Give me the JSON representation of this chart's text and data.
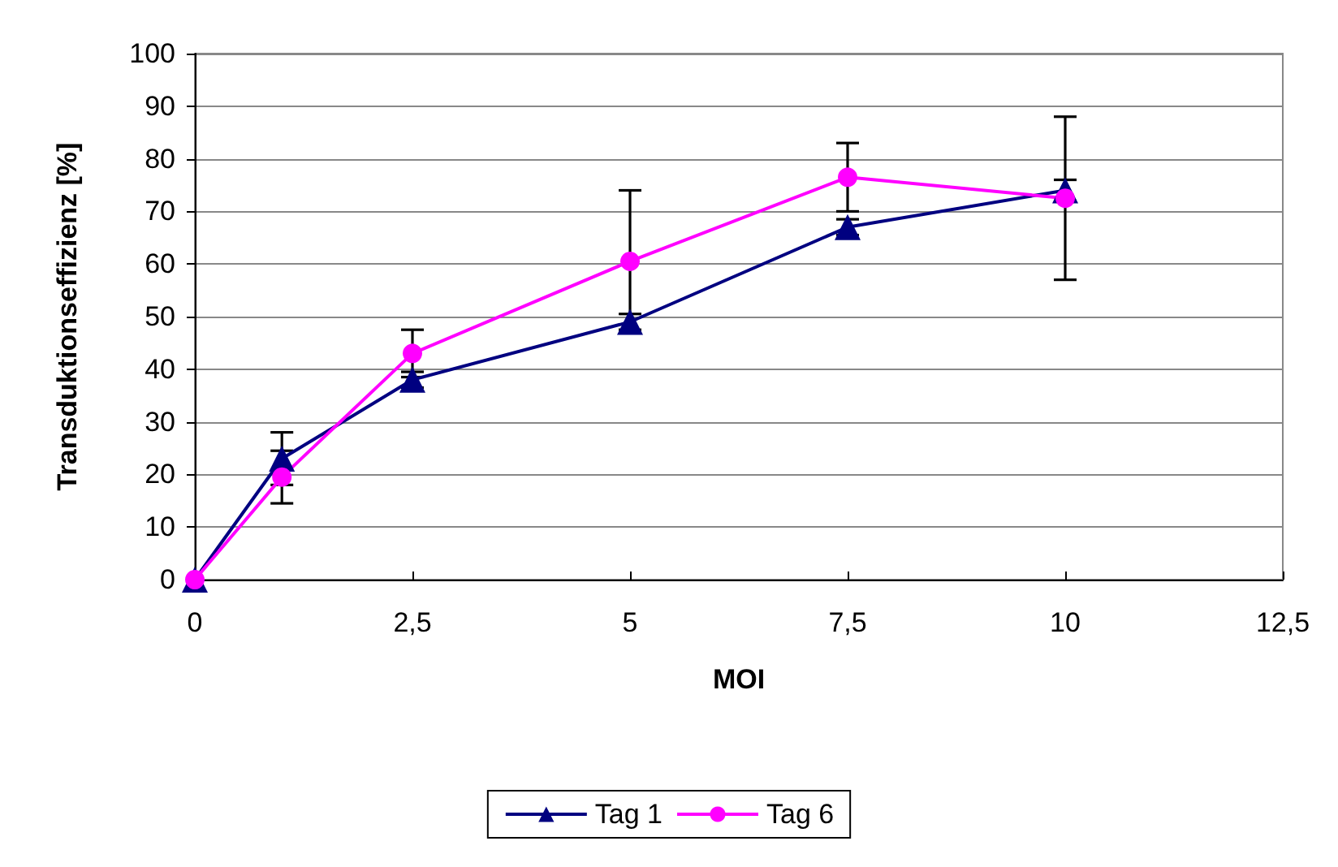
{
  "chart_data": {
    "type": "line",
    "xlabel": "MOI",
    "ylabel": "Transduktionseffizienz [%]",
    "x": [
      0,
      1,
      2.5,
      5,
      7.5,
      10
    ],
    "series": [
      {
        "name": "Tag 1",
        "color": "#000080",
        "marker": "triangle",
        "values": [
          0,
          23,
          38,
          49,
          67,
          74
        ],
        "errors": [
          null,
          5,
          1.5,
          1.5,
          1.5,
          2
        ]
      },
      {
        "name": "Tag 6",
        "color": "#ff00ff",
        "marker": "circle",
        "values": [
          0,
          19.5,
          43,
          60.5,
          76.5,
          72.5
        ],
        "errors": [
          null,
          5,
          4.5,
          13.5,
          6.5,
          15.5
        ]
      }
    ],
    "xlim": [
      0,
      12.5
    ],
    "xticks": [
      0,
      {
        "value": 2.5,
        "label": "2,5"
      },
      5,
      {
        "value": 7.5,
        "label": "7,5"
      },
      10,
      {
        "value": 12.5,
        "label": "12,5"
      }
    ],
    "ylim": [
      0,
      100
    ],
    "yticks": [
      0,
      10,
      20,
      30,
      40,
      50,
      60,
      70,
      80,
      90,
      100
    ],
    "grid": "y",
    "legend": "bottom",
    "line_style": "solid"
  }
}
